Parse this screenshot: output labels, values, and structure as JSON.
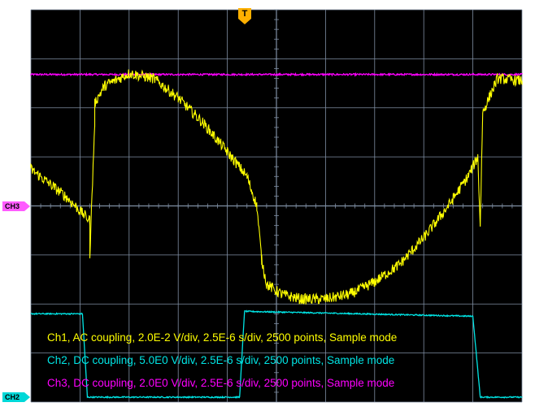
{
  "colors": {
    "background": "#000000",
    "grid": "#7f8ea3",
    "ch1": "#ffff00",
    "ch2": "#00e5e5",
    "ch3": "#ff00ff",
    "trigger_marker": "#ffb000",
    "ch3_marker": "#ff5cff",
    "ch2_marker": "#00d8d8"
  },
  "trigger": {
    "label": "T",
    "icon": "trigger-position-marker"
  },
  "markers": {
    "ch3": "CH3",
    "ch2": "CH2"
  },
  "info": {
    "ch1": "Ch1, AC coupling, 2.0E-2 V/div, 2.5E-6 s/div, 2500 points, Sample mode",
    "ch2": "Ch2, DC coupling, 5.0E0 V/div, 2.5E-6 s/div, 2500 points, Sample mode",
    "ch3": "Ch3, DC coupling, 2.0E0 V/div, 2.5E-6 s/div, 2500 points, Sample mode"
  },
  "chart_data": {
    "type": "line",
    "grid": true,
    "x_divisions": 10,
    "y_divisions": 8,
    "x_unit": "div",
    "y_unit": "div",
    "xlim": [
      0,
      10
    ],
    "ylim": [
      0,
      8
    ],
    "series": [
      {
        "name": "Ch1",
        "color": "#ffff00",
        "x": [
          0,
          0.7,
          1.2,
          1.2,
          1.3,
          1.3,
          1.5,
          2.0,
          2.5,
          3.0,
          3.5,
          4.0,
          4.4,
          4.6,
          4.7,
          4.8,
          5.1,
          5.5,
          6.0,
          6.5,
          7.0,
          7.5,
          8.0,
          8.5,
          8.9,
          9.1,
          9.15,
          9.2,
          9.5,
          10
        ],
        "y": [
          4.75,
          4.2,
          3.7,
          3.0,
          5.7,
          6.1,
          6.45,
          6.7,
          6.6,
          6.2,
          5.7,
          5.1,
          4.6,
          4.0,
          2.9,
          2.4,
          2.2,
          2.1,
          2.1,
          2.2,
          2.45,
          2.8,
          3.35,
          4.0,
          4.6,
          5.0,
          3.6,
          5.9,
          6.6,
          6.55
        ]
      },
      {
        "name": "Ch2",
        "color": "#00e5e5",
        "x": [
          0,
          1.05,
          1.15,
          4.25,
          4.35,
          9.0,
          9.15,
          10
        ],
        "y": [
          1.8,
          1.8,
          0.1,
          0.1,
          1.85,
          1.75,
          0.1,
          0.1
        ]
      },
      {
        "name": "Ch3",
        "color": "#ff00ff",
        "x": [
          0,
          10
        ],
        "y": [
          6.68,
          6.68
        ]
      }
    ]
  }
}
